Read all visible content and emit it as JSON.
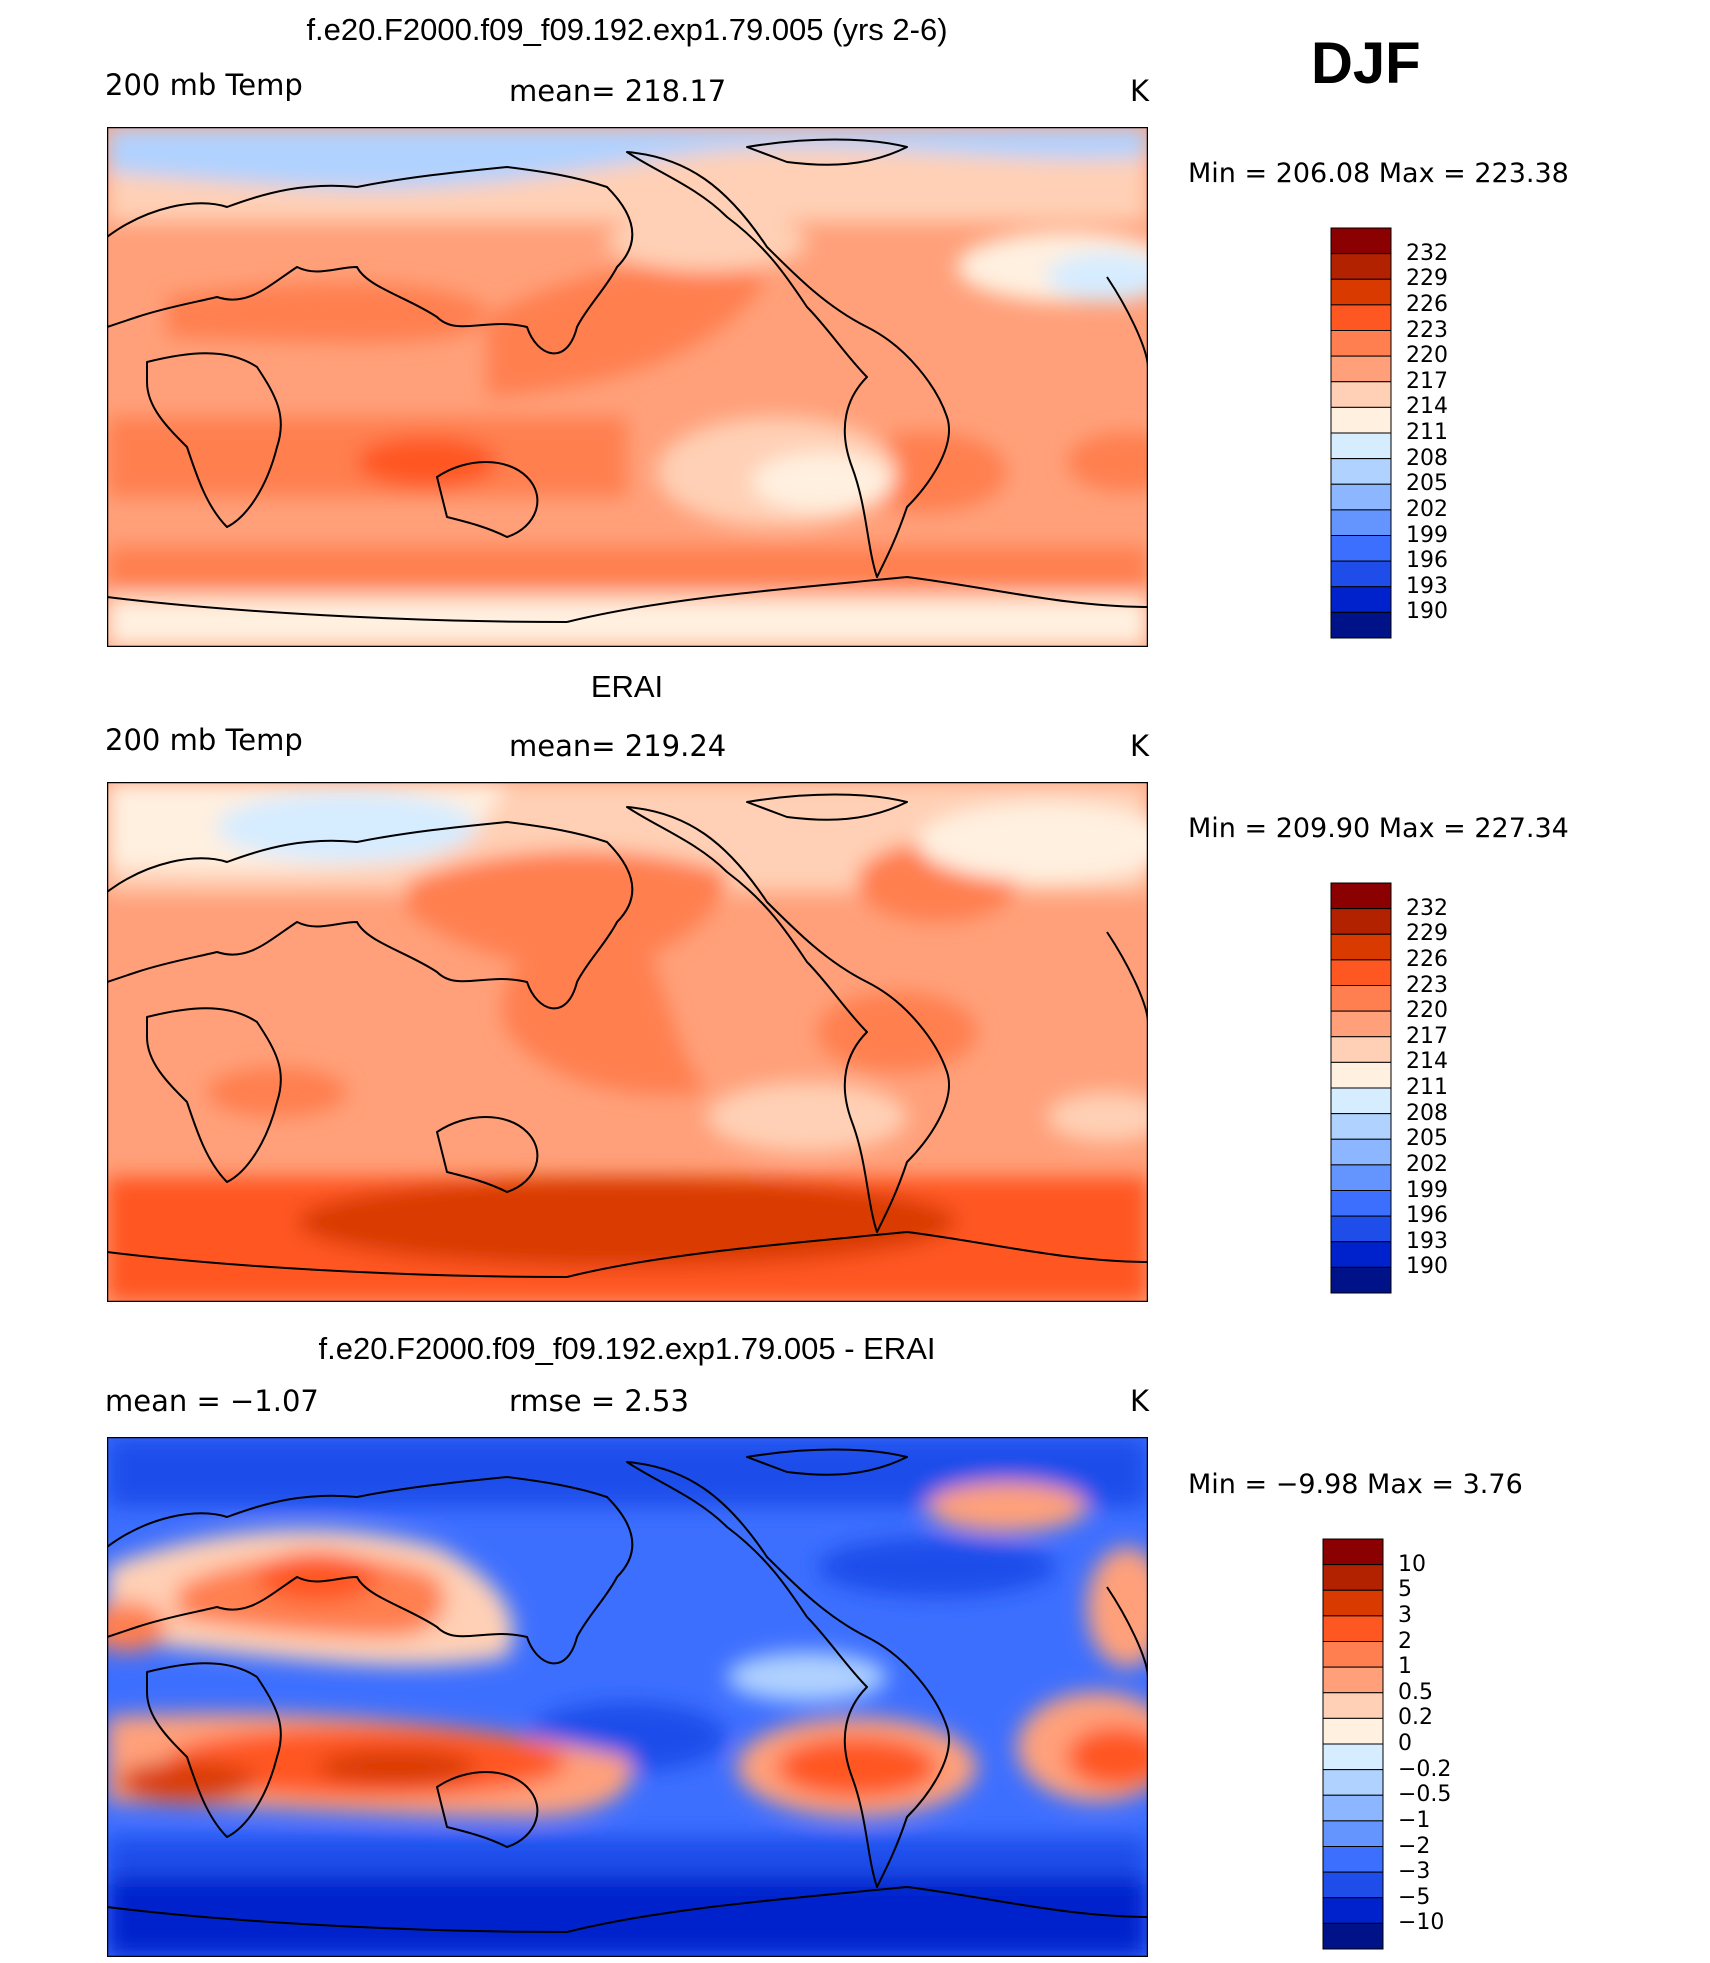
{
  "season": "DJF",
  "units": "K",
  "panels": [
    {
      "title": "f.e20.F2000.f09_f09.192.exp1.79.005 (yrs 2-6)",
      "left_label": "200 mb Temp",
      "center_label": "mean= 218.17",
      "right_label": "K",
      "minmax": "Min  =  206.08  Max  =  223.38",
      "colorbar": {
        "labels": [
          "232",
          "229",
          "226",
          "223",
          "220",
          "217",
          "214",
          "211",
          "208",
          "205",
          "202",
          "199",
          "196",
          "193",
          "190"
        ],
        "colors": [
          "#8b0000",
          "#b22200",
          "#d93a00",
          "#ff5722",
          "#ff7f50",
          "#ffa07a",
          "#ffd0b5",
          "#fff0e0",
          "#d6ecff",
          "#b0d2ff",
          "#8cb6ff",
          "#6495ff",
          "#3d6fff",
          "#1f4dea",
          "#0022cc",
          "#001288"
        ]
      }
    },
    {
      "title": "ERAI",
      "left_label": "200 mb Temp",
      "center_label": "mean= 219.24",
      "right_label": "K",
      "minmax": "Min  =  209.90  Max  =  227.34",
      "colorbar": {
        "labels": [
          "232",
          "229",
          "226",
          "223",
          "220",
          "217",
          "214",
          "211",
          "208",
          "205",
          "202",
          "199",
          "196",
          "193",
          "190"
        ],
        "colors": [
          "#8b0000",
          "#b22200",
          "#d93a00",
          "#ff5722",
          "#ff7f50",
          "#ffa07a",
          "#ffd0b5",
          "#fff0e0",
          "#d6ecff",
          "#b0d2ff",
          "#8cb6ff",
          "#6495ff",
          "#3d6fff",
          "#1f4dea",
          "#0022cc",
          "#001288"
        ]
      }
    },
    {
      "title": "f.e20.F2000.f09_f09.192.exp1.79.005 - ERAI",
      "left_label": "mean  =     −1.07",
      "center_label": "rmse  =     2.53",
      "right_label": "K",
      "minmax": "Min  =    −9.98  Max  =      3.76",
      "colorbar": {
        "labels": [
          "10",
          "5",
          "3",
          "2",
          "1",
          "0.5",
          "0.2",
          "0",
          "−0.2",
          "−0.5",
          "−1",
          "−2",
          "−3",
          "−5",
          "−10"
        ],
        "colors": [
          "#8b0000",
          "#b22200",
          "#d93a00",
          "#ff5722",
          "#ff7f50",
          "#ffa07a",
          "#ffd0b5",
          "#fff0e0",
          "#d6ecff",
          "#b0d2ff",
          "#8cb6ff",
          "#6495ff",
          "#3d6fff",
          "#1f4dea",
          "#0022cc",
          "#001288"
        ]
      }
    }
  ]
}
